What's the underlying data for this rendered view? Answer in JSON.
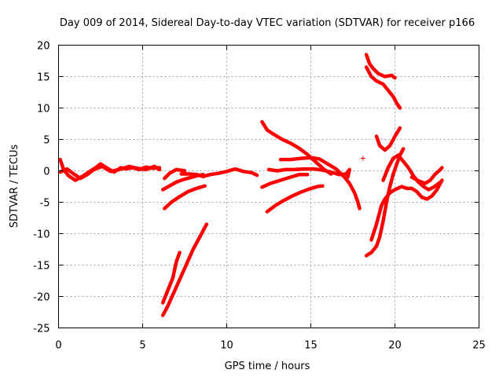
{
  "chart_data": {
    "type": "scatter",
    "title": "Day 009 of 2014, Sidereal Day-to-day VTEC variation (SDTVAR) for receiver p166",
    "xlabel": "GPS time / hours",
    "ylabel": "SDTVAR / TECUs",
    "xlim": [
      0,
      25
    ],
    "ylim": [
      -25,
      20
    ],
    "xticks": [
      0,
      5,
      10,
      15,
      20,
      25
    ],
    "yticks": [
      -25,
      -20,
      -15,
      -10,
      -5,
      0,
      5,
      10,
      15,
      20
    ],
    "grid": true,
    "marker": "+",
    "color": "#ff0000",
    "segments": [
      [
        [
          0.1,
          1.8
        ],
        [
          0.3,
          0.2
        ],
        [
          0.6,
          -0.8
        ],
        [
          1.0,
          -1.5
        ],
        [
          1.4,
          -0.9
        ],
        [
          1.8,
          -0.2
        ],
        [
          2.2,
          0.5
        ],
        [
          2.5,
          1.1
        ],
        [
          2.9,
          0.4
        ],
        [
          3.3,
          -0.2
        ],
        [
          3.7,
          0.5
        ],
        [
          4.0,
          0.3
        ],
        [
          4.4,
          0.5
        ],
        [
          4.8,
          0.2
        ],
        [
          5.2,
          0.6
        ],
        [
          5.6,
          0.4
        ],
        [
          6.0,
          0.5
        ]
      ],
      [
        [
          0.1,
          -0.2
        ],
        [
          0.5,
          0.3
        ],
        [
          0.9,
          -0.5
        ],
        [
          1.3,
          -1.2
        ],
        [
          1.7,
          -0.6
        ],
        [
          2.1,
          0.2
        ],
        [
          2.6,
          0.7
        ],
        [
          3.1,
          -0.1
        ],
        [
          3.6,
          0.2
        ],
        [
          4.2,
          0.7
        ],
        [
          4.7,
          0.4
        ],
        [
          5.2,
          0.2
        ],
        [
          5.7,
          0.7
        ],
        [
          6.0,
          0.2
        ]
      ],
      [
        [
          6.3,
          -1.2
        ],
        [
          6.6,
          -0.4
        ],
        [
          7.0,
          0.2
        ],
        [
          7.5,
          0.0
        ]
      ],
      [
        [
          7.3,
          -0.5
        ],
        [
          7.8,
          -0.5
        ],
        [
          8.2,
          -0.6
        ],
        [
          8.6,
          -0.9
        ],
        [
          9.0,
          -0.6
        ],
        [
          9.5,
          -0.4
        ],
        [
          10.0,
          -0.1
        ],
        [
          10.5,
          0.3
        ],
        [
          11.0,
          -0.1
        ],
        [
          11.5,
          -0.3
        ],
        [
          11.8,
          -0.7
        ]
      ],
      [
        [
          6.2,
          -3.0
        ],
        [
          6.6,
          -2.4
        ],
        [
          7.0,
          -1.8
        ],
        [
          7.4,
          -1.4
        ],
        [
          7.8,
          -1.1
        ],
        [
          8.2,
          -0.8
        ],
        [
          8.6,
          -0.6
        ]
      ],
      [
        [
          6.3,
          -6.0
        ],
        [
          6.7,
          -5.0
        ],
        [
          7.2,
          -4.1
        ],
        [
          7.7,
          -3.3
        ],
        [
          8.2,
          -2.8
        ],
        [
          8.7,
          -2.4
        ]
      ],
      [
        [
          6.2,
          -21.0
        ],
        [
          6.5,
          -19.0
        ],
        [
          6.8,
          -17.0
        ],
        [
          7.0,
          -14.5
        ],
        [
          7.2,
          -13.0
        ]
      ],
      [
        [
          6.2,
          -23.0
        ],
        [
          6.5,
          -21.5
        ],
        [
          7.0,
          -18.5
        ],
        [
          7.5,
          -15.5
        ],
        [
          8.0,
          -12.5
        ],
        [
          8.4,
          -10.5
        ],
        [
          8.8,
          -8.5
        ]
      ],
      [
        [
          12.1,
          7.8
        ],
        [
          12.4,
          6.5
        ],
        [
          12.8,
          5.8
        ],
        [
          13.3,
          5.0
        ],
        [
          13.8,
          4.4
        ],
        [
          14.3,
          3.6
        ],
        [
          14.8,
          2.6
        ],
        [
          15.3,
          1.4
        ],
        [
          15.8,
          0.2
        ],
        [
          16.2,
          -0.5
        ]
      ],
      [
        [
          13.2,
          1.8
        ],
        [
          13.8,
          1.8
        ],
        [
          14.5,
          2.0
        ],
        [
          15.0,
          2.1
        ],
        [
          15.5,
          1.9
        ],
        [
          16.0,
          1.1
        ],
        [
          16.5,
          0.3
        ],
        [
          16.8,
          -0.5
        ],
        [
          17.0,
          -1.0
        ],
        [
          17.3,
          -2.0
        ],
        [
          17.6,
          -3.5
        ],
        [
          17.8,
          -5.0
        ],
        [
          17.9,
          -6.0
        ]
      ],
      [
        [
          12.5,
          0.2
        ],
        [
          13.0,
          0.0
        ],
        [
          13.5,
          0.2
        ],
        [
          14.0,
          0.2
        ],
        [
          14.6,
          0.3
        ],
        [
          15.2,
          0.3
        ],
        [
          15.7,
          0.1
        ],
        [
          16.2,
          -0.2
        ],
        [
          16.7,
          -0.6
        ],
        [
          17.1,
          -0.5
        ],
        [
          17.3,
          0.2
        ],
        [
          17.2,
          -1.0
        ]
      ],
      [
        [
          12.1,
          -2.6
        ],
        [
          12.6,
          -2.0
        ],
        [
          13.2,
          -1.5
        ],
        [
          13.8,
          -1.0
        ],
        [
          14.3,
          -0.6
        ],
        [
          14.8,
          -0.6
        ]
      ],
      [
        [
          12.4,
          -6.5
        ],
        [
          12.9,
          -5.5
        ],
        [
          13.4,
          -4.7
        ],
        [
          13.9,
          -4.0
        ],
        [
          14.4,
          -3.4
        ],
        [
          14.9,
          -2.9
        ],
        [
          15.4,
          -2.5
        ],
        [
          15.7,
          -2.4
        ]
      ],
      [
        [
          18.3,
          18.5
        ],
        [
          18.5,
          17.0
        ],
        [
          18.7,
          16.3
        ],
        [
          19.0,
          15.5
        ],
        [
          19.4,
          15.0
        ],
        [
          19.8,
          15.2
        ],
        [
          20.0,
          14.8
        ]
      ],
      [
        [
          18.3,
          16.5
        ],
        [
          18.6,
          15.0
        ],
        [
          18.9,
          14.3
        ],
        [
          19.3,
          13.8
        ],
        [
          19.6,
          12.8
        ],
        [
          19.9,
          11.8
        ],
        [
          20.1,
          10.8
        ],
        [
          20.3,
          10.0
        ]
      ],
      [
        [
          18.9,
          5.5
        ],
        [
          19.1,
          4.0
        ],
        [
          19.4,
          3.3
        ],
        [
          19.7,
          4.0
        ],
        [
          20.0,
          5.5
        ],
        [
          20.3,
          6.8
        ]
      ],
      [
        [
          18.3,
          -13.5
        ],
        [
          18.6,
          -13.0
        ],
        [
          18.9,
          -12.0
        ],
        [
          19.1,
          -10.5
        ],
        [
          19.3,
          -8.0
        ],
        [
          19.5,
          -5.0
        ],
        [
          19.7,
          -2.5
        ],
        [
          19.9,
          -0.5
        ],
        [
          20.1,
          1.0
        ],
        [
          20.3,
          2.5
        ],
        [
          20.5,
          3.5
        ]
      ],
      [
        [
          19.3,
          -1.5
        ],
        [
          19.6,
          0.5
        ],
        [
          19.9,
          2.0
        ],
        [
          20.2,
          2.5
        ],
        [
          20.5,
          1.5
        ],
        [
          20.8,
          0.5
        ],
        [
          21.1,
          -0.8
        ],
        [
          21.4,
          -1.8
        ],
        [
          21.7,
          -2.5
        ],
        [
          22.0,
          -3.0
        ],
        [
          22.3,
          -2.6
        ],
        [
          22.7,
          -1.8
        ]
      ],
      [
        [
          18.6,
          -11.0
        ],
        [
          18.9,
          -8.5
        ],
        [
          19.2,
          -5.5
        ],
        [
          19.4,
          -4.5
        ],
        [
          19.7,
          -3.5
        ],
        [
          20.0,
          -3.0
        ],
        [
          20.4,
          -2.5
        ],
        [
          20.7,
          -2.8
        ],
        [
          21.0,
          -2.8
        ],
        [
          21.3,
          -3.3
        ],
        [
          21.6,
          -4.2
        ],
        [
          21.9,
          -4.5
        ],
        [
          22.2,
          -4.0
        ],
        [
          22.5,
          -3.0
        ],
        [
          22.8,
          -1.5
        ]
      ],
      [
        [
          21.0,
          -1.0
        ],
        [
          21.4,
          -1.6
        ],
        [
          21.8,
          -2.0
        ],
        [
          22.1,
          -1.5
        ],
        [
          22.4,
          -0.5
        ],
        [
          22.7,
          0.2
        ],
        [
          22.8,
          0.5
        ]
      ]
    ],
    "isolated_points": [
      [
        18.1,
        2.0
      ]
    ]
  }
}
